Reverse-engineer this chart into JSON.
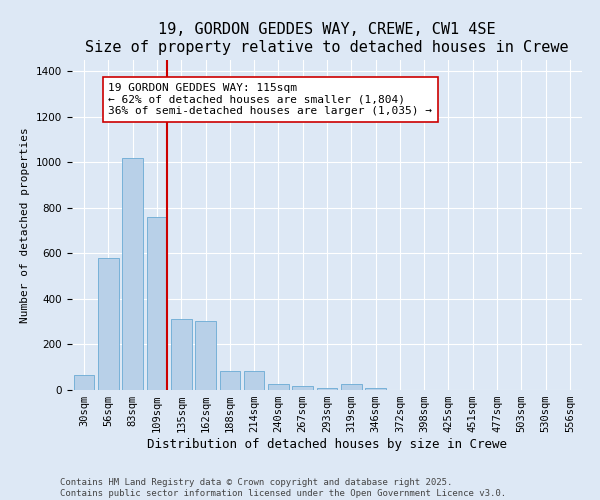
{
  "title": "19, GORDON GEDDES WAY, CREWE, CW1 4SE",
  "subtitle": "Size of property relative to detached houses in Crewe",
  "xlabel": "Distribution of detached houses by size in Crewe",
  "ylabel": "Number of detached properties",
  "categories": [
    "30sqm",
    "56sqm",
    "83sqm",
    "109sqm",
    "135sqm",
    "162sqm",
    "188sqm",
    "214sqm",
    "240sqm",
    "267sqm",
    "293sqm",
    "319sqm",
    "346sqm",
    "372sqm",
    "398sqm",
    "425sqm",
    "451sqm",
    "477sqm",
    "503sqm",
    "530sqm",
    "556sqm"
  ],
  "values": [
    65,
    580,
    1020,
    760,
    310,
    305,
    85,
    85,
    28,
    18,
    8,
    28,
    8,
    0,
    0,
    0,
    0,
    0,
    0,
    0,
    0
  ],
  "bar_color": "#b8d0e8",
  "bar_edgecolor": "#6aaad4",
  "vline_x_index": 3,
  "vline_color": "#cc0000",
  "annotation_text": "19 GORDON GEDDES WAY: 115sqm\n← 62% of detached houses are smaller (1,804)\n36% of semi-detached houses are larger (1,035) →",
  "annotation_box_facecolor": "#ffffff",
  "annotation_box_edgecolor": "#cc0000",
  "ylim": [
    0,
    1450
  ],
  "background_color": "#dde8f5",
  "plot_background": "#dde8f5",
  "footer_line1": "Contains HM Land Registry data © Crown copyright and database right 2025.",
  "footer_line2": "Contains public sector information licensed under the Open Government Licence v3.0.",
  "title_fontsize": 11,
  "ylabel_fontsize": 8,
  "xlabel_fontsize": 9,
  "tick_fontsize": 7.5,
  "annotation_fontsize": 8,
  "footer_fontsize": 6.5
}
